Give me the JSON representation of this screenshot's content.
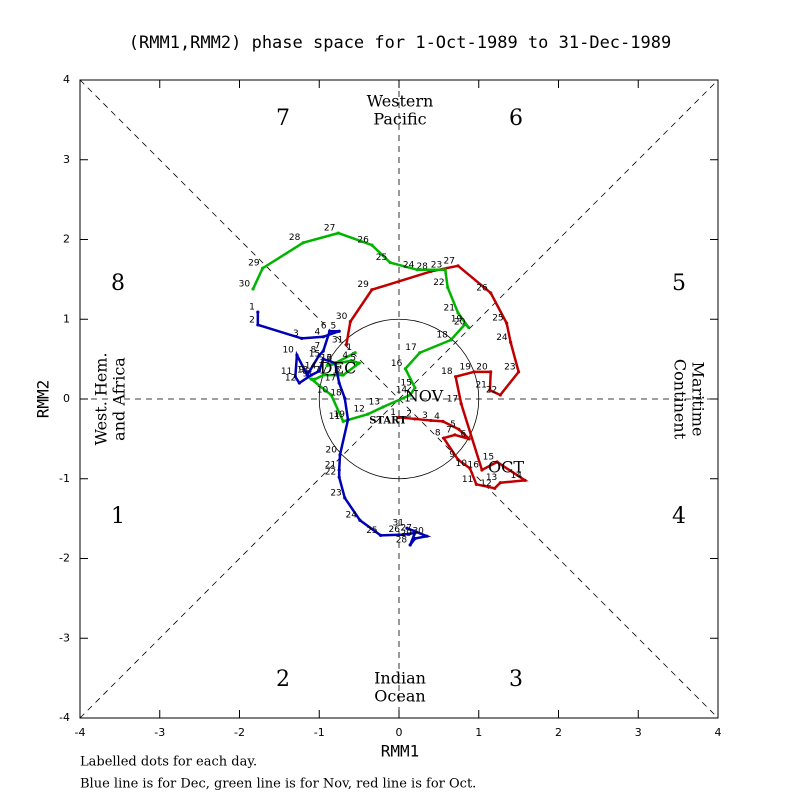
{
  "chart_data": {
    "type": "phase",
    "title": "(RMM1,RMM2) phase space for  1-Oct-1989 to 31-Dec-1989",
    "x_label": "RMM1",
    "y_label": "RMM2",
    "xlim": [
      -4,
      4
    ],
    "ylim": [
      -4,
      4
    ],
    "xticks": [
      -4,
      -3,
      -2,
      -1,
      0,
      1,
      2,
      3,
      4
    ],
    "yticks": [
      -4,
      -3,
      -2,
      -1,
      0,
      1,
      2,
      3,
      4
    ],
    "phase_labels": [
      "1",
      "2",
      "3",
      "4",
      "5",
      "6",
      "7",
      "8"
    ],
    "regions": {
      "top": [
        "Western",
        "Pacific"
      ],
      "bottom": [
        "Indian",
        "Ocean"
      ],
      "left": [
        "West. Hem.",
        "and Africa"
      ],
      "right": [
        "Maritime",
        "Continent"
      ]
    },
    "start_label": "START",
    "notes": [
      "Labelled dots for each day.",
      "Blue line is for Dec, green line is for Nov, red line is for Oct."
    ],
    "series": [
      {
        "name": "OCT",
        "color": "#c00000",
        "days": [
          1,
          2,
          3,
          4,
          5,
          6,
          7,
          8,
          9,
          10,
          11,
          12,
          13,
          14,
          15,
          16,
          17,
          18,
          19,
          20,
          21,
          22,
          23,
          24,
          25,
          26,
          27,
          28,
          29,
          30,
          31
        ],
        "x": [
          0.0,
          0.2,
          0.4,
          0.55,
          0.75,
          0.88,
          0.7,
          0.56,
          0.74,
          0.89,
          0.97,
          1.2,
          1.27,
          1.58,
          1.23,
          1.04,
          0.78,
          0.71,
          0.94,
          1.15,
          1.14,
          1.27,
          1.5,
          1.4,
          1.35,
          1.15,
          0.74,
          0.4,
          -0.34,
          -0.61,
          -0.66
        ],
        "y": [
          -0.23,
          -0.25,
          -0.27,
          -0.28,
          -0.38,
          -0.5,
          -0.45,
          -0.49,
          -0.76,
          -0.87,
          -1.07,
          -1.12,
          -1.05,
          -1.02,
          -0.79,
          -0.89,
          -0.06,
          0.28,
          0.34,
          0.34,
          0.11,
          0.05,
          0.34,
          0.71,
          0.95,
          1.33,
          1.67,
          1.6,
          1.37,
          0.97,
          0.68
        ]
      },
      {
        "name": "NOV",
        "color": "#00b400",
        "days": [
          1,
          2,
          3,
          4,
          5,
          6,
          7,
          8,
          9,
          10,
          11,
          12,
          13,
          14,
          15,
          16,
          17,
          18,
          19,
          20,
          21,
          22,
          23,
          24,
          25,
          26,
          27,
          28,
          29,
          30
        ],
        "x": [
          -0.55,
          -0.8,
          -0.9,
          -0.6,
          -0.5,
          -0.7,
          -0.95,
          -1.05,
          -1.1,
          -0.85,
          -0.7,
          -0.39,
          -0.2,
          0.14,
          0.2,
          0.08,
          0.26,
          0.65,
          0.83,
          0.87,
          0.74,
          0.61,
          0.58,
          0.23,
          -0.11,
          -0.34,
          -0.76,
          -1.2,
          -1.71,
          -1.83
        ],
        "y": [
          0.58,
          0.45,
          0.42,
          0.48,
          0.45,
          0.3,
          0.3,
          0.25,
          0.25,
          0.05,
          -0.28,
          -0.19,
          -0.1,
          0.05,
          0.14,
          0.38,
          0.58,
          0.74,
          0.94,
          0.9,
          1.08,
          1.4,
          1.62,
          1.62,
          1.71,
          1.93,
          2.08,
          1.96,
          1.64,
          1.38
        ]
      },
      {
        "name": "DEC",
        "color": "#0000b4",
        "days": [
          1,
          2,
          3,
          4,
          5,
          6,
          7,
          8,
          9,
          10,
          11,
          12,
          13,
          14,
          15,
          16,
          17,
          18,
          19,
          20,
          21,
          22,
          23,
          24,
          25,
          26,
          27,
          28,
          29,
          30,
          31
        ],
        "x": [
          -1.77,
          -1.77,
          -1.22,
          -0.95,
          -0.75,
          -0.87,
          -0.95,
          -1.0,
          -1.15,
          -1.28,
          -1.3,
          -1.25,
          -1.1,
          -1.0,
          -0.95,
          -0.8,
          -0.75,
          -0.68,
          -0.64,
          -0.74,
          -0.75,
          -0.75,
          -0.68,
          -0.49,
          -0.23,
          0.05,
          0.2,
          0.14,
          0.2,
          0.35,
          0.1
        ],
        "y": [
          1.09,
          0.93,
          0.76,
          0.78,
          0.85,
          0.85,
          0.6,
          0.55,
          0.3,
          0.55,
          0.28,
          0.2,
          0.3,
          0.35,
          0.5,
          0.45,
          0.2,
          0.01,
          -0.26,
          -0.7,
          -0.89,
          -0.98,
          -1.24,
          -1.52,
          -1.71,
          -1.7,
          -1.68,
          -1.83,
          -1.75,
          -1.72,
          -1.62
        ]
      }
    ]
  }
}
